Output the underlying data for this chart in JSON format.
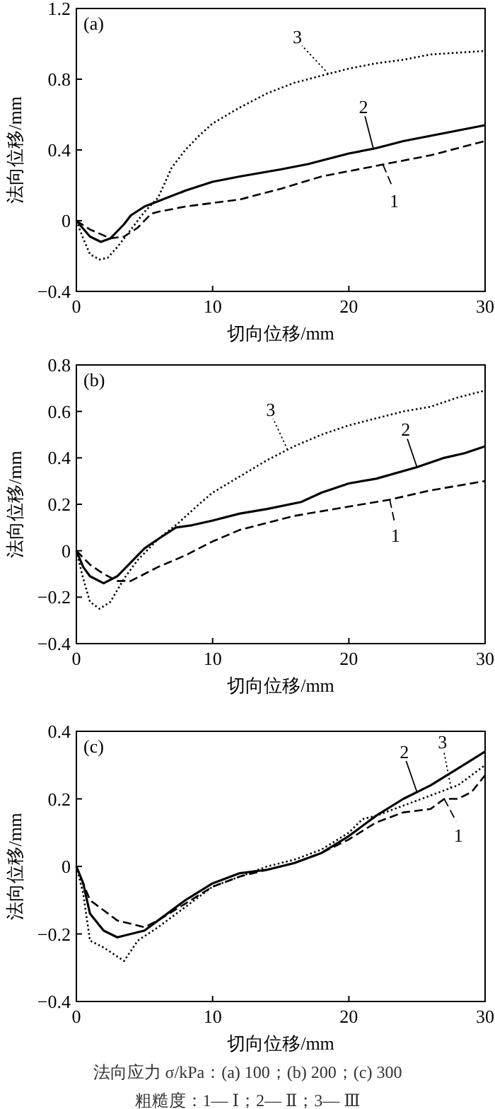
{
  "chart_data": [
    {
      "type": "line",
      "xlabel": "切向位移/mm",
      "ylabel": "法向位移/mm",
      "annotations": [
        "(a)"
      ],
      "xlim": [
        0,
        30
      ],
      "xticks": [
        0,
        10,
        20,
        30
      ],
      "ylim": [
        -0.4,
        1.2
      ],
      "yticks": [
        -0.4,
        0,
        0.4,
        0.8,
        1.2
      ],
      "grid": false,
      "series": [
        {
          "name": "1",
          "color": "#000000",
          "line_style": "dashed",
          "x": [
            0,
            1,
            2.5,
            3.5,
            4.5,
            5.5,
            6,
            8,
            10,
            12,
            15,
            18,
            20,
            22,
            24,
            26,
            28,
            30
          ],
          "values": [
            0,
            -0.05,
            -0.1,
            -0.09,
            -0.04,
            0.04,
            0.05,
            0.08,
            0.1,
            0.12,
            0.18,
            0.25,
            0.28,
            0.31,
            0.34,
            0.37,
            0.41,
            0.45
          ]
        },
        {
          "name": "2",
          "color": "#000000",
          "line_style": "solid",
          "x": [
            0,
            1,
            1.8,
            2.5,
            3.5,
            4,
            5,
            6,
            8,
            10,
            12,
            15,
            17,
            20,
            22,
            24,
            26,
            28,
            30
          ],
          "values": [
            0,
            -0.09,
            -0.12,
            -0.1,
            -0.02,
            0.03,
            0.08,
            0.11,
            0.17,
            0.22,
            0.25,
            0.29,
            0.32,
            0.38,
            0.41,
            0.45,
            0.48,
            0.51,
            0.54
          ]
        },
        {
          "name": "3",
          "color": "#000000",
          "line_style": "dotted",
          "x": [
            0,
            0.5,
            1,
            1.7,
            2.3,
            3,
            4,
            5,
            6,
            7,
            8,
            9,
            10,
            12,
            14,
            16,
            18,
            20,
            22,
            24,
            26,
            28,
            30
          ],
          "values": [
            0,
            -0.1,
            -0.19,
            -0.22,
            -0.21,
            -0.15,
            -0.05,
            0.05,
            0.13,
            0.3,
            0.4,
            0.48,
            0.55,
            0.64,
            0.72,
            0.78,
            0.82,
            0.86,
            0.89,
            0.91,
            0.94,
            0.95,
            0.96
          ]
        }
      ]
    },
    {
      "type": "line",
      "xlabel": "切向位移/mm",
      "ylabel": "法向位移/mm",
      "annotations": [
        "(b)"
      ],
      "xlim": [
        0,
        30
      ],
      "xticks": [
        0,
        10,
        20,
        30
      ],
      "ylim": [
        -0.4,
        0.8
      ],
      "yticks": [
        -0.4,
        -0.2,
        0,
        0.2,
        0.4,
        0.6,
        0.8
      ],
      "grid": false,
      "series": [
        {
          "name": "1",
          "color": "#000000",
          "line_style": "dashed",
          "x": [
            0,
            1,
            2,
            3,
            4,
            5,
            6,
            8,
            10,
            12,
            14,
            16,
            18,
            20,
            23,
            26,
            28,
            30
          ],
          "values": [
            0,
            -0.06,
            -0.1,
            -0.13,
            -0.13,
            -0.1,
            -0.07,
            -0.02,
            0.04,
            0.09,
            0.12,
            0.15,
            0.17,
            0.19,
            0.22,
            0.26,
            0.28,
            0.3
          ]
        },
        {
          "name": "2",
          "color": "#000000",
          "line_style": "solid",
          "x": [
            0,
            0.5,
            1,
            2,
            3,
            4,
            5,
            6,
            7.3,
            8.5,
            10,
            12,
            14,
            16.5,
            18,
            20,
            22,
            25,
            27,
            28.5,
            30
          ],
          "values": [
            0,
            -0.07,
            -0.11,
            -0.14,
            -0.11,
            -0.05,
            0.01,
            0.05,
            0.1,
            0.11,
            0.13,
            0.16,
            0.18,
            0.21,
            0.25,
            0.29,
            0.31,
            0.36,
            0.4,
            0.42,
            0.45
          ]
        },
        {
          "name": "3",
          "color": "#000000",
          "line_style": "dotted",
          "x": [
            0,
            0.5,
            1,
            1.7,
            2.5,
            3.5,
            4.5,
            6,
            7.5,
            9,
            10,
            12,
            14,
            16,
            18,
            20,
            22,
            24,
            26,
            28,
            30
          ],
          "values": [
            0,
            -0.12,
            -0.22,
            -0.25,
            -0.22,
            -0.12,
            -0.04,
            0.05,
            0.12,
            0.2,
            0.25,
            0.32,
            0.39,
            0.45,
            0.5,
            0.54,
            0.57,
            0.6,
            0.62,
            0.66,
            0.69
          ]
        }
      ]
    },
    {
      "type": "line",
      "xlabel": "切向位移/mm",
      "ylabel": "法向位移/mm",
      "annotations": [
        "(c)",
        "法向应力 σ/kPa：(a) 100；(b) 200；(c) 300",
        "粗糙度：1— Ⅰ；2— Ⅱ；3— Ⅲ"
      ],
      "xlim": [
        0,
        30
      ],
      "xticks": [
        0,
        10,
        20,
        30
      ],
      "ylim": [
        -0.4,
        0.4
      ],
      "yticks": [
        -0.4,
        -0.2,
        0,
        0.2,
        0.4
      ],
      "grid": false,
      "series": [
        {
          "name": "1",
          "color": "#000000",
          "line_style": "dashed",
          "x": [
            0,
            1,
            2,
            3,
            5,
            6,
            8,
            10,
            12,
            14,
            16,
            18,
            20,
            22,
            24,
            26,
            27,
            28,
            29,
            30
          ],
          "values": [
            0,
            -0.1,
            -0.13,
            -0.16,
            -0.18,
            -0.16,
            -0.11,
            -0.06,
            -0.03,
            -0.01,
            0.01,
            0.04,
            0.08,
            0.13,
            0.16,
            0.17,
            0.2,
            0.2,
            0.22,
            0.27
          ]
        },
        {
          "name": "2",
          "color": "#000000",
          "line_style": "solid",
          "x": [
            0,
            0.5,
            1,
            2,
            3,
            4,
            5,
            6,
            8,
            10,
            12,
            14,
            16,
            18,
            20,
            22,
            24,
            26,
            28,
            30
          ],
          "values": [
            0,
            -0.05,
            -0.14,
            -0.19,
            -0.21,
            -0.2,
            -0.19,
            -0.16,
            -0.1,
            -0.05,
            -0.02,
            -0.01,
            0.01,
            0.04,
            0.09,
            0.15,
            0.2,
            0.24,
            0.29,
            0.34
          ]
        },
        {
          "name": "3",
          "color": "#000000",
          "line_style": "dotted",
          "x": [
            0,
            0.5,
            1,
            2,
            3.5,
            4.5,
            6,
            8,
            10,
            12,
            14,
            16,
            18,
            20,
            21,
            22,
            24,
            26,
            28,
            30
          ],
          "values": [
            0,
            -0.08,
            -0.22,
            -0.24,
            -0.28,
            -0.22,
            -0.18,
            -0.12,
            -0.06,
            -0.03,
            0,
            0.02,
            0.05,
            0.1,
            0.14,
            0.15,
            0.18,
            0.21,
            0.24,
            0.3
          ]
        }
      ]
    }
  ]
}
